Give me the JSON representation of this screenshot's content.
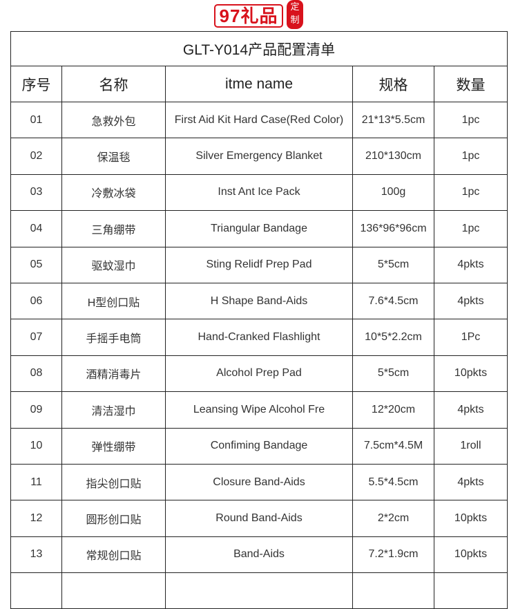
{
  "title": "GLT-Y014产品配置清单",
  "headers": [
    "序号",
    "名称",
    "itme name",
    "规格",
    "数量"
  ],
  "rows": [
    [
      "01",
      "急救外包",
      "First Aid  Kit Hard Case(Red Color)",
      "21*13*5.5cm",
      "1pc"
    ],
    [
      "02",
      "保温毯",
      "Silver Emergency Blanket",
      "210*130cm",
      "1pc"
    ],
    [
      "03",
      "冷敷冰袋",
      "Inst Ant Ice Pack",
      "100g",
      "1pc"
    ],
    [
      "04",
      "三角绷带",
      "Triangular Bandage",
      "136*96*96cm",
      "1pc"
    ],
    [
      "05",
      "驱蚊湿巾",
      "Sting Relidf Prep Pad",
      "5*5cm",
      "4pkts"
    ],
    [
      "06",
      "H型创口贴",
      "H Shape Band-Aids",
      "7.6*4.5cm",
      "4pkts"
    ],
    [
      "07",
      "手摇手电筒",
      "Hand-Cranked Flashlight",
      "10*5*2.2cm",
      "1Pc"
    ],
    [
      "08",
      "酒精消毒片",
      "Alcohol Prep Pad",
      "5*5cm",
      "10pkts"
    ],
    [
      "09",
      "清洁湿巾",
      "Leansing Wipe Alcohol Fre",
      "12*20cm",
      "4pkts"
    ],
    [
      "10",
      "弹性绷带",
      "Confiming Bandage",
      "7.5cm*4.5M",
      "1roll"
    ],
    [
      "11",
      "指尖创口贴",
      "Closure Band-Aids",
      "5.5*4.5cm",
      "4pkts"
    ],
    [
      "12",
      "圆形创口贴",
      "Round Band-Aids",
      "2*2cm",
      "10pkts"
    ],
    [
      "13",
      "常规创口贴",
      "Band-Aids",
      "7.2*1.9cm",
      "10pkts"
    ],
    [
      "",
      "",
      "",
      "",
      ""
    ]
  ],
  "watermark": {
    "text": "97礼品",
    "seal": "定制",
    "color": "#d8121c"
  }
}
